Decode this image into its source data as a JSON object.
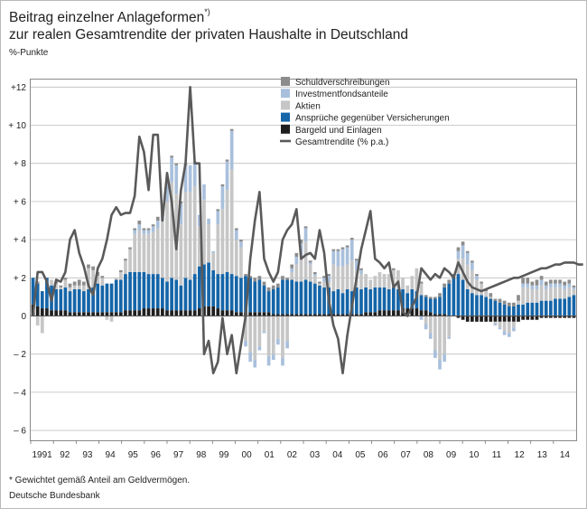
{
  "header": {
    "title_line1": "Beitrag einzelner Anlageformen",
    "title_marker": "*)",
    "title_line2": "zur realen Gesamtrendite der privaten Haushalte in Deutschland",
    "unit": "%-Punkte"
  },
  "footer": {
    "footnote": "* Gewichtet gemäß Anteil am Geldvermögen.",
    "source": "Deutsche Bundesbank"
  },
  "chart_data": {
    "type": "bar",
    "stacked": true,
    "ylabel": "%-Punkte",
    "ylim": [
      -6,
      12.5
    ],
    "yticks": [
      -6,
      -4,
      -2,
      0,
      2,
      4,
      6,
      8,
      10,
      12
    ],
    "ytick_labels": [
      "– 6",
      "– 4",
      "– 2",
      "0",
      "+ 2",
      "+ 4",
      "+ 6",
      "+ 8",
      "+ 10",
      "+12"
    ],
    "x_year_labels": [
      "1991",
      "92",
      "93",
      "94",
      "95",
      "96",
      "97",
      "98",
      "99",
      "00",
      "01",
      "02",
      "03",
      "04",
      "05",
      "06",
      "07",
      "08",
      "09",
      "10",
      "11",
      "12",
      "13",
      "14"
    ],
    "frequency": "quarterly",
    "grid": "horizontal",
    "legend_position": "top-right",
    "colors": {
      "Schuldverschreibungen": "#8c8c8c",
      "Investmentfondsanteile": "#a9c0dc",
      "Aktien": "#c6c6c6",
      "Versicherungen": "#1565a8",
      "Bargeld": "#1e1e1e",
      "Gesamtrendite": "#5a5a5a",
      "grid": "#bdbdbd"
    },
    "legend": [
      {
        "label": "Schuldverschreibungen",
        "type": "bar",
        "color": "#8c8c8c"
      },
      {
        "label": "Investmentfondsanteile",
        "type": "bar",
        "color": "#a9c0dc"
      },
      {
        "label": "Aktien",
        "type": "bar",
        "color": "#c6c6c6"
      },
      {
        "label": "Ansprüche gegenüber Versicherungen",
        "type": "bar",
        "color": "#1565a8"
      },
      {
        "label": "Bargeld und Einlagen",
        "type": "bar",
        "color": "#1e1e1e"
      },
      {
        "label": "Gesamtrendite (% p.a.)",
        "type": "line",
        "color": "#5a5a5a"
      }
    ],
    "series": [
      {
        "name": "Bargeld und Einlagen",
        "values": [
          0.6,
          0.5,
          0.4,
          0.4,
          0.3,
          0.3,
          0.3,
          0.3,
          0.2,
          0.2,
          0.2,
          0.2,
          0.2,
          0.2,
          0.2,
          0.2,
          0.2,
          0.2,
          0.2,
          0.2,
          0.3,
          0.3,
          0.3,
          0.3,
          0.4,
          0.4,
          0.4,
          0.4,
          0.4,
          0.3,
          0.3,
          0.3,
          0.3,
          0.3,
          0.3,
          0.3,
          0.4,
          0.5,
          0.5,
          0.5,
          0.4,
          0.3,
          0.3,
          0.3,
          0.2,
          0.2,
          0.2,
          0.2,
          0.2,
          0.2,
          0.2,
          0.2,
          0.1,
          0.1,
          0.1,
          0.1,
          0.1,
          0.1,
          0.1,
          0.1,
          0.1,
          0.1,
          0.1,
          0.1,
          0.1,
          0.1,
          0.1,
          0.1,
          0.1,
          0.1,
          0.1,
          0.1,
          0.2,
          0.2,
          0.2,
          0.3,
          0.3,
          0.3,
          0.3,
          0.3,
          0.4,
          0.4,
          0.4,
          0.4,
          0.3,
          0.3,
          0.2,
          0.1,
          0.1,
          0.1,
          0.0,
          0.0,
          -0.1,
          -0.2,
          -0.3,
          -0.3,
          -0.3,
          -0.3,
          -0.3,
          -0.3,
          -0.3,
          -0.3,
          -0.3,
          -0.3,
          -0.3,
          -0.3,
          -0.2,
          -0.2,
          -0.2,
          -0.2,
          -0.1,
          -0.1,
          -0.1,
          -0.1,
          -0.1,
          -0.1,
          -0.1,
          -0.1
        ]
      },
      {
        "name": "Ansprüche gegenüber Versicherungen",
        "values": [
          1.4,
          1.2,
          0.9,
          1.6,
          1.3,
          1.1,
          1.1,
          1.2,
          1.1,
          1.2,
          1.2,
          1.1,
          1.2,
          1.3,
          1.5,
          1.4,
          1.5,
          1.5,
          1.7,
          1.7,
          1.9,
          2.0,
          2.0,
          2.0,
          1.9,
          1.8,
          1.8,
          1.8,
          1.6,
          1.5,
          1.7,
          1.6,
          1.3,
          1.7,
          1.6,
          1.9,
          2.2,
          2.2,
          2.3,
          1.9,
          1.8,
          1.9,
          2.0,
          1.9,
          1.9,
          1.8,
          1.9,
          1.8,
          1.6,
          1.7,
          1.4,
          1.1,
          1.3,
          1.4,
          1.8,
          1.8,
          1.8,
          1.7,
          1.7,
          1.8,
          1.7,
          1.6,
          1.5,
          1.4,
          1.4,
          1.2,
          1.3,
          1.1,
          1.3,
          1.2,
          1.4,
          1.3,
          1.3,
          1.2,
          1.3,
          1.2,
          1.2,
          1.1,
          1.2,
          1.1,
          1.0,
          0.8,
          1.0,
          0.9,
          0.8,
          0.7,
          0.7,
          0.8,
          0.9,
          1.4,
          1.7,
          2.0,
          2.2,
          1.9,
          1.4,
          1.2,
          1.1,
          1.1,
          1.0,
          0.9,
          0.8,
          0.7,
          0.6,
          0.5,
          0.5,
          0.6,
          0.6,
          0.7,
          0.7,
          0.7,
          0.8,
          0.8,
          0.8,
          0.9,
          0.9,
          0.9,
          1.0,
          1.1,
          1.2,
          1.2
        ]
      },
      {
        "name": "Aktien",
        "values": [
          0.0,
          -0.5,
          -0.9,
          0.0,
          0.3,
          0.3,
          0.1,
          0.4,
          0.2,
          0.2,
          0.2,
          0.3,
          1.1,
          0.9,
          0.4,
          0.4,
          -0.2,
          -0.3,
          0.1,
          0.4,
          0.7,
          1.2,
          2.0,
          2.2,
          2.0,
          2.1,
          2.2,
          2.4,
          3.0,
          4.2,
          5.0,
          4.5,
          3.2,
          4.5,
          4.6,
          4.6,
          2.1,
          3.4,
          2.0,
          0.9,
          2.6,
          3.4,
          4.3,
          5.5,
          1.9,
          1.6,
          -1.3,
          -1.9,
          -2.3,
          -1.6,
          -0.8,
          -2.1,
          -2.0,
          -1.2,
          -2.2,
          -1.3,
          0.4,
          0.9,
          1.4,
          2.0,
          0.9,
          0.4,
          0.1,
          0.3,
          0.3,
          1.4,
          1.2,
          1.4,
          1.3,
          1.6,
          0.9,
          0.8,
          0.7,
          0.5,
          0.6,
          0.8,
          0.7,
          0.8,
          0.9,
          1.0,
          0.6,
          0.4,
          0.7,
          1.2,
          0.6,
          -0.4,
          -0.9,
          -1.8,
          -2.3,
          -2.0,
          -1.1,
          0.0,
          0.8,
          1.1,
          1.3,
          1.2,
          0.8,
          0.6,
          0.3,
          0.1,
          -0.1,
          -0.3,
          -0.5,
          -0.6,
          -0.3,
          0.2,
          0.9,
          0.8,
          0.7,
          0.7,
          0.8,
          0.6,
          0.7,
          0.6,
          0.6,
          0.5,
          0.5,
          0.3,
          0.2,
          0.1
        ]
      },
      {
        "name": "Investmentfondsanteile",
        "values": [
          0.0,
          0.0,
          0.0,
          0.0,
          0.0,
          0.0,
          0.0,
          0.0,
          0.0,
          0.0,
          0.0,
          0.0,
          0.0,
          0.0,
          0.0,
          0.0,
          0.0,
          0.0,
          0.0,
          0.0,
          0.0,
          0.0,
          0.2,
          0.3,
          0.2,
          0.2,
          0.3,
          0.4,
          0.5,
          1.0,
          1.3,
          1.5,
          1.1,
          1.4,
          1.4,
          1.3,
          0.6,
          0.8,
          0.3,
          0.1,
          0.7,
          1.2,
          1.5,
          2.0,
          0.5,
          0.3,
          -0.3,
          -0.5,
          -0.4,
          -0.2,
          -0.1,
          -0.5,
          -0.3,
          -0.3,
          -0.4,
          -0.4,
          0.2,
          0.4,
          0.6,
          0.7,
          0.1,
          0.1,
          0.0,
          0.2,
          0.3,
          0.7,
          0.8,
          0.9,
          0.9,
          1.1,
          0.5,
          0.2,
          0.0,
          0.0,
          0.0,
          0.0,
          0.0,
          0.0,
          0.0,
          0.0,
          0.0,
          0.0,
          0.0,
          0.0,
          -0.2,
          -0.3,
          -0.3,
          -0.4,
          -0.5,
          -0.4,
          -0.1,
          0.0,
          0.4,
          0.7,
          0.6,
          0.4,
          0.2,
          0.0,
          0.0,
          0.0,
          -0.1,
          -0.1,
          -0.2,
          -0.2,
          -0.2,
          0.0,
          0.2,
          0.2,
          0.2,
          0.2,
          0.3,
          0.2,
          0.2,
          0.2,
          0.2,
          0.2,
          0.2,
          0.1,
          0.1,
          0.1
        ]
      },
      {
        "name": "Schuldverschreibungen",
        "values": [
          0.0,
          0.1,
          0.0,
          0.0,
          0.0,
          0.1,
          0.1,
          0.1,
          0.2,
          0.2,
          0.3,
          0.2,
          0.2,
          0.2,
          0.2,
          0.1,
          0.0,
          0.0,
          0.0,
          0.1,
          0.1,
          0.1,
          0.1,
          0.2,
          0.1,
          0.1,
          0.1,
          0.2,
          0.2,
          0.1,
          0.1,
          0.1,
          0.1,
          0.1,
          0.0,
          0.0,
          0.0,
          0.0,
          0.0,
          0.0,
          0.1,
          0.1,
          0.1,
          0.1,
          0.1,
          0.1,
          0.1,
          0.1,
          0.2,
          0.2,
          0.2,
          0.2,
          0.2,
          0.2,
          0.2,
          0.1,
          0.2,
          0.2,
          0.2,
          0.1,
          0.1,
          0.1,
          0.1,
          0.1,
          0.1,
          0.1,
          0.1,
          0.1,
          0.1,
          0.1,
          0.1,
          0.1,
          0.0,
          0.0,
          0.0,
          0.0,
          0.0,
          0.0,
          0.1,
          0.0,
          0.0,
          0.0,
          0.0,
          0.0,
          0.1,
          0.1,
          0.1,
          0.1,
          0.2,
          0.2,
          0.2,
          0.2,
          0.2,
          0.2,
          0.1,
          0.1,
          0.1,
          0.1,
          0.1,
          0.2,
          0.1,
          0.2,
          0.2,
          0.2,
          0.2,
          0.3,
          0.3,
          0.3,
          0.2,
          0.3,
          0.2,
          0.2,
          0.2,
          0.2,
          0.2,
          0.2,
          0.2,
          0.1,
          0.1,
          0.1
        ]
      }
    ],
    "line": {
      "name": "Gesamtrendite (% p.a.)",
      "values": [
        0.0,
        2.3,
        2.3,
        1.8,
        0.8,
        1.9,
        1.8,
        2.3,
        4.0,
        4.5,
        3.3,
        2.6,
        1.6,
        1.1,
        2.5,
        3.0,
        4.0,
        5.3,
        5.7,
        5.3,
        5.4,
        5.4,
        6.3,
        9.4,
        8.6,
        6.6,
        9.5,
        9.5,
        5.0,
        7.5,
        6.0,
        3.5,
        6.6,
        8.0,
        12.0,
        8.0,
        8.0,
        -2.0,
        -1.3,
        -3.0,
        -2.4,
        -0.1,
        -2.0,
        -1.0,
        -3.0,
        -1.5,
        0.0,
        3.0,
        5.0,
        6.5,
        3.0,
        2.3,
        1.8,
        2.3,
        4.0,
        4.5,
        4.8,
        5.6,
        3.0,
        3.2,
        3.3,
        3.0,
        4.5,
        3.3,
        0.8,
        -0.5,
        -1.2,
        -3.0,
        -1.0,
        0.5,
        2.0,
        3.5,
        4.5,
        5.5,
        3.0,
        2.8,
        2.5,
        2.8,
        1.5,
        1.8,
        0.2,
        0.0,
        0.5,
        1.0,
        2.5,
        2.2,
        1.9,
        2.2,
        2.0,
        2.5,
        2.3,
        2.0,
        2.8,
        2.3,
        1.8,
        1.5,
        1.4,
        1.3,
        1.4,
        1.5,
        1.6,
        1.7,
        1.8,
        1.9,
        2.0,
        2.0,
        2.1,
        2.2,
        2.3,
        2.4,
        2.5,
        2.5,
        2.6,
        2.7,
        2.7,
        2.8,
        2.8,
        2.8,
        2.7,
        2.7
      ]
    }
  }
}
